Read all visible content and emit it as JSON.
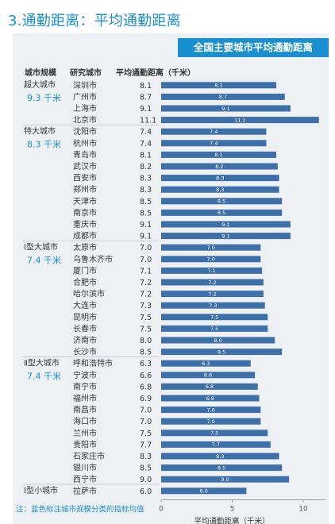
{
  "page_title": "3.通勤距离：平均通勤距离",
  "note": "注：蓝色标注城市规模分类的指标均值",
  "colors": {
    "bar": "#3d6fa8",
    "accent": "#1a8fd0",
    "panel": "#eef1f4"
  },
  "chart_data": {
    "type": "bar",
    "orientation": "horizontal",
    "title": "全国主要城市平均通勤距离",
    "col_headers": {
      "scale": "城市规模",
      "city": "研究城市",
      "value": "平均通勤距离（千米）"
    },
    "xlabel": "平均通勤距离（千米）",
    "xlim": [
      0,
      12
    ],
    "xticks": [
      0,
      5,
      10
    ],
    "xtick_labels": [
      "0",
      "5",
      "10"
    ],
    "groups": [
      {
        "name": "超大城市",
        "avg": "9.3 千米",
        "cities": [
          "深圳市",
          "广州市",
          "上海市",
          "北京市"
        ],
        "values": [
          8.1,
          8.7,
          9.1,
          11.1
        ],
        "labels": [
          "8.1",
          "8.7",
          "9.1",
          "11.1"
        ]
      },
      {
        "name": "特大城市",
        "avg": "8.3 千米",
        "cities": [
          "沈阳市",
          "杭州市",
          "青岛市",
          "武汉市",
          "西安市",
          "郑州市",
          "天津市",
          "南京市",
          "重庆市",
          "成都市"
        ],
        "values": [
          7.4,
          7.4,
          8.1,
          8.2,
          8.3,
          8.3,
          8.5,
          8.5,
          9.1,
          9.1
        ],
        "labels": [
          "7.4",
          "7.4",
          "8.1",
          "8.2",
          "8.3",
          "8.3",
          "8.5",
          "8.5",
          "9.1",
          "9.1"
        ]
      },
      {
        "name": "Ⅰ型大城市",
        "avg": "7.4 千米",
        "cities": [
          "太原市",
          "乌鲁木齐市",
          "厦门市",
          "合肥市",
          "哈尔滨市",
          "大连市",
          "昆明市",
          "长春市",
          "济南市",
          "长沙市"
        ],
        "values": [
          7.0,
          7.0,
          7.1,
          7.2,
          7.2,
          7.3,
          7.5,
          7.5,
          8.0,
          8.5
        ],
        "labels": [
          "7.0",
          "7.0",
          "7.1",
          "7.2",
          "7.2",
          "7.3",
          "7.5",
          "7.5",
          "8.0",
          "8.5"
        ]
      },
      {
        "name": "Ⅱ型大城市",
        "avg": "7.4 千米",
        "cities": [
          "呼和浩特市",
          "宁波市",
          "南宁市",
          "福州市",
          "南昌市",
          "海口市",
          "兰州市",
          "贵阳市",
          "石家庄市",
          "银川市",
          "西宁市"
        ],
        "values": [
          6.3,
          6.6,
          6.8,
          6.9,
          7.0,
          7.0,
          7.5,
          7.7,
          8.3,
          8.5,
          9.0
        ],
        "labels": [
          "6.3",
          "6.6",
          "6.8",
          "6.9",
          "7.0",
          "7.0",
          "7.5",
          "7.7",
          "8.3",
          "8.5",
          "9.0"
        ]
      },
      {
        "name": "Ⅰ型小城市",
        "avg": "",
        "cities": [
          "拉萨市"
        ],
        "values": [
          6.0
        ],
        "labels": [
          "6.0"
        ]
      }
    ]
  }
}
